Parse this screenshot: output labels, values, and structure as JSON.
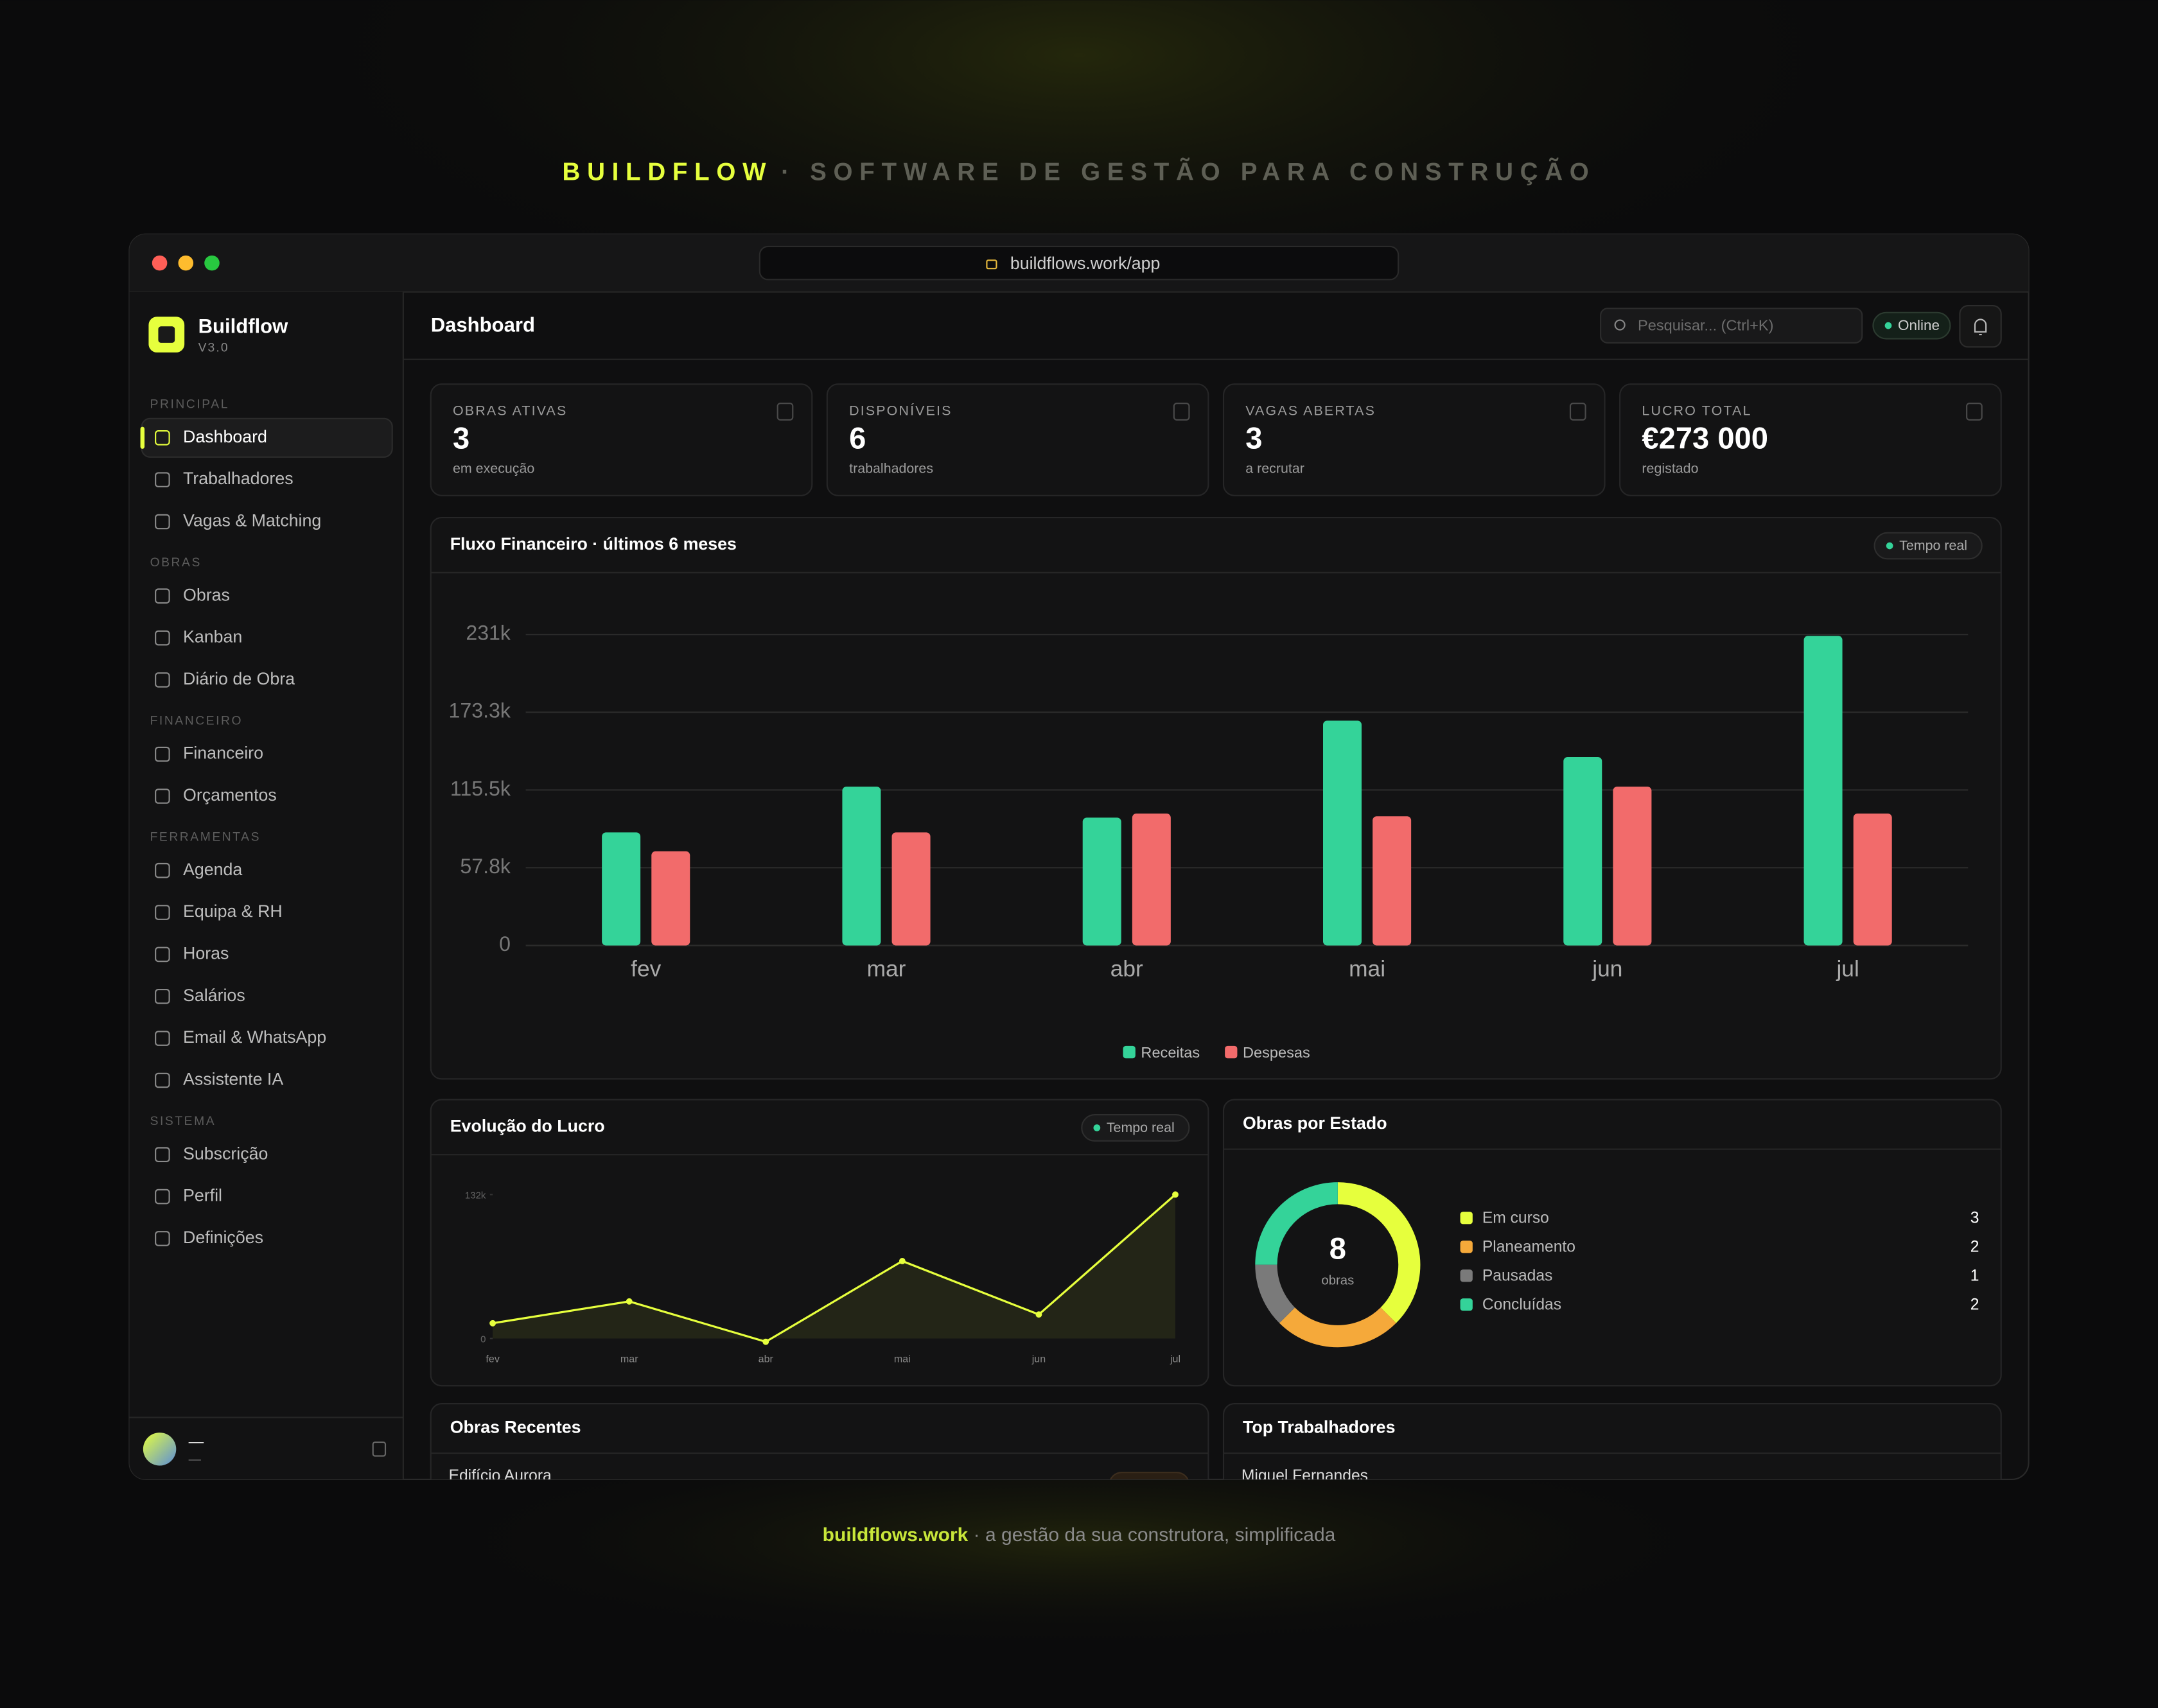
{
  "header": {
    "brand": "BUILDFLOW",
    "tagline": "· SOFTWARE DE GESTÃO PARA CONSTRUÇÃO"
  },
  "browser": {
    "url": "buildflows.work/app"
  },
  "sidebar": {
    "app_name": "Buildflow",
    "version": "V3.0",
    "sections": [
      {
        "title": "PRINCIPAL",
        "items": [
          "Dashboard",
          "Trabalhadores",
          "Vagas & Matching"
        ]
      },
      {
        "title": "OBRAS",
        "items": [
          "Obras",
          "Kanban",
          "Diário de Obra"
        ]
      },
      {
        "title": "FINANCEIRO",
        "items": [
          "Financeiro",
          "Orçamentos"
        ]
      },
      {
        "title": "FERRAMENTAS",
        "items": [
          "Agenda",
          "Equipa & RH",
          "Horas",
          "Salários",
          "Email & WhatsApp",
          "Assistente IA"
        ]
      },
      {
        "title": "SISTEMA",
        "items": [
          "Subscrição",
          "Perfil",
          "Definições"
        ]
      }
    ],
    "user": {
      "name": "—",
      "role": "—"
    }
  },
  "topbar": {
    "title": "Dashboard",
    "search_placeholder": "Pesquisar... (Ctrl+K)",
    "status": "Online"
  },
  "kpis": [
    {
      "label": "OBRAS ATIVAS",
      "value": 3,
      "note": "em execução"
    },
    {
      "label": "DISPONÍVEIS",
      "value": 6,
      "note": "trabalhadores"
    },
    {
      "label": "VAGAS ABERTAS",
      "value": 3,
      "note": "a recrutar"
    },
    {
      "label": "LUCRO TOTAL",
      "value": 273000,
      "value_label": "€273 000",
      "note": "registado"
    }
  ],
  "charts": {
    "cash_flow": {
      "type": "bar",
      "title": "Fluxo Financeiro · últimos 6 meses",
      "badge": "Tempo real",
      "categories": [
        "fev",
        "mar",
        "abr",
        "mai",
        "jun",
        "jul"
      ],
      "series": [
        {
          "name": "Receitas",
          "color": "#34d399",
          "values": [
            84,
            118,
            95,
            167,
            140,
            230
          ]
        },
        {
          "name": "Despesas",
          "color": "#f26b6b",
          "values": [
            70,
            84,
            98,
            96,
            118,
            98
          ]
        }
      ],
      "ylim": [
        0,
        231
      ],
      "yticks": [
        0,
        {
          "value": 57.8,
          "label": "57.8k"
        },
        {
          "value": 115.5,
          "label": "115.5k"
        },
        {
          "value": 173.3,
          "label": "173.3k"
        },
        {
          "value": 231,
          "label": "231k"
        }
      ],
      "grid": true
    },
    "profit": {
      "type": "line",
      "title": "Evolução do Lucro",
      "badge": "Tempo real",
      "categories": [
        "fev",
        "mar",
        "abr",
        "mai",
        "jun",
        "jul"
      ],
      "values": [
        14,
        34,
        -3,
        71,
        22,
        132
      ],
      "color": "#e6ff3d",
      "ylim": [
        -3,
        132
      ],
      "yticks": [
        0,
        {
          "value": 132,
          "label": "132k"
        }
      ]
    },
    "status": {
      "type": "donut",
      "title": "Obras por Estado",
      "total": 8,
      "total_label": "obras",
      "categories": [
        "Em curso",
        "Planeamento",
        "Pausadas",
        "Concluídas"
      ],
      "values": [
        3,
        2,
        1,
        2
      ],
      "colors": [
        "#e6ff3d",
        "#f5a93a",
        "#7a7a7a",
        "#34d399"
      ]
    }
  },
  "recent": {
    "title": "Obras Recentes",
    "rows": [
      "Edifício Aurora"
    ]
  },
  "top_workers": {
    "title": "Top Trabalhadores",
    "rows": [
      "Miguel Fernandes"
    ]
  },
  "footer": {
    "domain": "buildflows.work",
    "text": " · a gestão da sua construtora, simplificada"
  }
}
